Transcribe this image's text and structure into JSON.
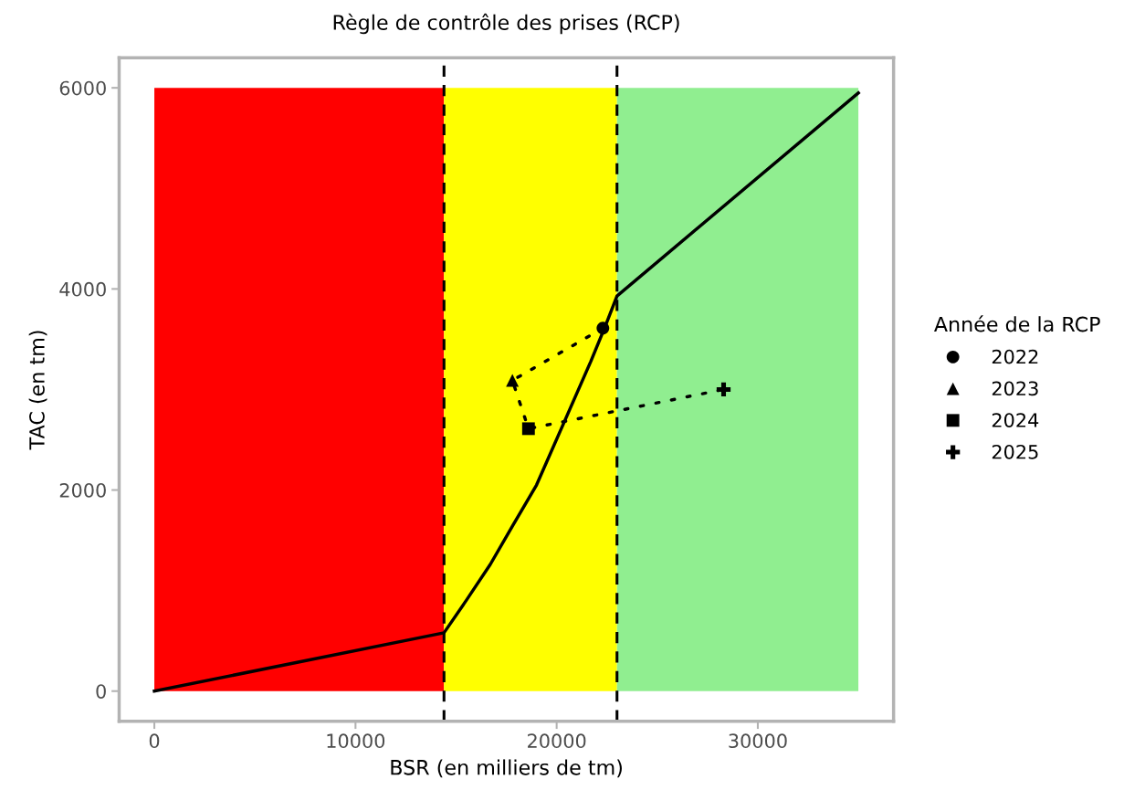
{
  "chart_data": {
    "type": "line",
    "title": "Règle de contrôle des prises (RCP)",
    "xlabel": "BSR (en milliers de tm)",
    "ylabel": "TAC (en tm)",
    "legend_title": "Année de la RCP",
    "xlim": [
      -1750,
      36750
    ],
    "ylim": [
      -300,
      6300
    ],
    "xticks": [
      0,
      10000,
      20000,
      30000
    ],
    "yticks": [
      0,
      2000,
      4000,
      6000
    ],
    "grid": false,
    "legend": "right",
    "series": [
      {
        "type": "area",
        "color": "#ff0000",
        "x": [
          0,
          14400
        ],
        "values": [
          6000,
          6000
        ]
      },
      {
        "type": "area",
        "color": "#ffff00",
        "x": [
          14400,
          23000
        ],
        "values": [
          6000,
          6000
        ]
      },
      {
        "type": "area",
        "color": "#90ee90",
        "x": [
          23000,
          35000
        ],
        "values": [
          6000,
          6000
        ]
      },
      {
        "color": "#000000",
        "line_style": "solid",
        "x": [
          0,
          14400,
          15500,
          16700,
          17800,
          19000,
          20450,
          21700,
          22400,
          23000,
          35000
        ],
        "values": [
          0,
          580,
          900,
          1260,
          1640,
          2050,
          2710,
          3280,
          3620,
          3930,
          5950
        ]
      },
      {
        "color": "#000000",
        "line_style": "dotted",
        "x": [
          22300,
          17800,
          18600,
          28300
        ],
        "values": [
          3610,
          3090,
          2610,
          3000
        ]
      },
      {
        "type": "scatter",
        "name": "2022",
        "color": "#000000",
        "marker": "circle",
        "x": [
          22300
        ],
        "values": [
          3610
        ]
      },
      {
        "type": "scatter",
        "name": "2023",
        "color": "#000000",
        "marker": "triangle",
        "x": [
          17800
        ],
        "values": [
          3090
        ]
      },
      {
        "type": "scatter",
        "name": "2024",
        "color": "#000000",
        "marker": "square",
        "x": [
          18600
        ],
        "values": [
          2610
        ]
      },
      {
        "type": "scatter",
        "name": "2025",
        "color": "#000000",
        "marker": "cross",
        "x": [
          28300
        ],
        "values": [
          3000
        ]
      }
    ],
    "ref_lines": [
      {
        "axis": "x",
        "value": 14400,
        "color": "#000000",
        "line_style": "dashed"
      },
      {
        "axis": "x",
        "value": 23000,
        "color": "#000000",
        "line_style": "dashed"
      }
    ]
  }
}
